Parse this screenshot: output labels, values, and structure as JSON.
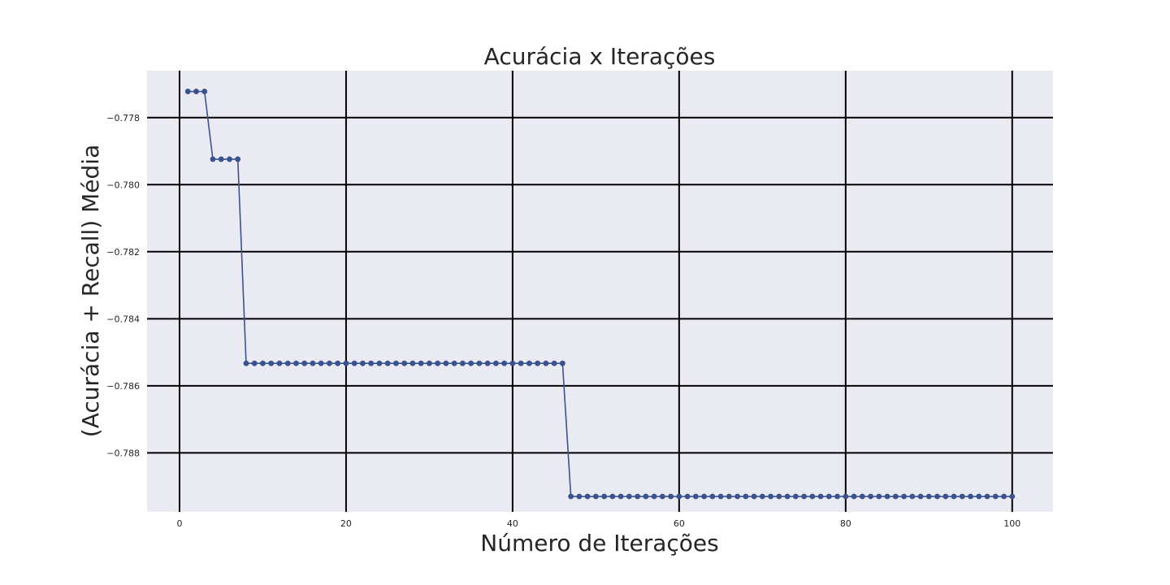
{
  "chart_data": {
    "type": "line",
    "title": "Acurácia x Iterações",
    "xlabel": "Número de Iterações",
    "ylabel": "(Acurácia + Recall) Média",
    "xlim": [
      -3.9,
      104.9
    ],
    "ylim": [
      -0.78976,
      -0.7766
    ],
    "xticks": [
      0,
      20,
      40,
      60,
      80,
      100
    ],
    "yticks": [
      -0.778,
      -0.78,
      -0.782,
      -0.784,
      -0.786,
      -0.788
    ],
    "xtick_labels": [
      "0",
      "20",
      "40",
      "60",
      "80",
      "100"
    ],
    "ytick_labels": [
      "−0.778",
      "−0.780",
      "−0.782",
      "−0.784",
      "−0.786",
      "−0.788"
    ],
    "grid": true,
    "colors": {
      "line": "#3a5290",
      "background": "#eaeaf2",
      "grid": "#000000"
    },
    "segments": [
      {
        "from": 1,
        "to": 3,
        "value": -0.77722
      },
      {
        "from": 4,
        "to": 7,
        "value": -0.77924
      },
      {
        "from": 8,
        "to": 46,
        "value": -0.78533
      },
      {
        "from": 47,
        "to": 100,
        "value": -0.7893
      }
    ]
  }
}
